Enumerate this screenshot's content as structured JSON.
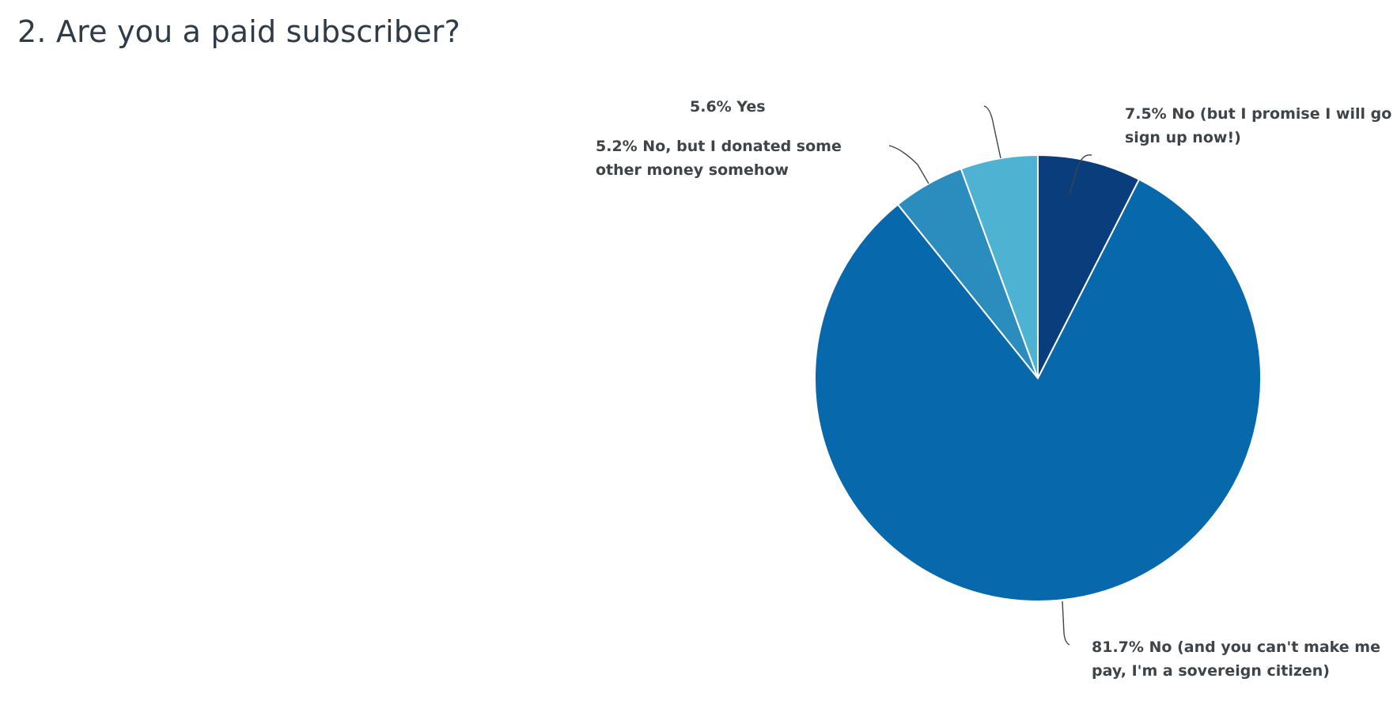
{
  "question": {
    "title": "2. Are you a paid subscriber?"
  },
  "chart_data": {
    "type": "pie",
    "title": "2. Are you a paid subscriber?",
    "start_angle_deg": 0,
    "direction": "clockwise",
    "slices": [
      {
        "name": "No (but I promise I will go sign up now!)",
        "value": 7.5,
        "label_lines": [
          "7.5% No (but I promise I will go",
          "sign up now!)"
        ],
        "color": "#0a3d7c"
      },
      {
        "name": "No (and you can't make me pay, I'm a sovereign citizen)",
        "value": 81.7,
        "label_lines": [
          "81.7% No (and you can't make me",
          "pay, I'm a sovereign citizen)"
        ],
        "color": "#0868ac"
      },
      {
        "name": "No, but I donated some other money somehow",
        "value": 5.2,
        "label_lines": [
          "5.2% No, but I donated some",
          "other money somehow"
        ],
        "color": "#2b8cbe"
      },
      {
        "name": "Yes",
        "value": 5.6,
        "label_lines": [
          "5.6% Yes"
        ],
        "color": "#4eb3d3"
      }
    ]
  }
}
